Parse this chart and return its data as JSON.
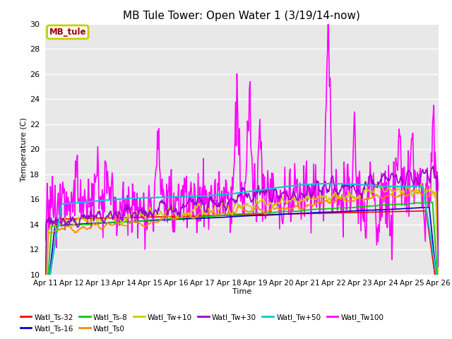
{
  "title": "MB Tule Tower: Open Water 1 (3/19/14-now)",
  "xlabel": "Time",
  "ylabel": "Temperature (C)",
  "xlim": [
    0,
    15
  ],
  "ylim": [
    10,
    30
  ],
  "yticks": [
    10,
    12,
    14,
    16,
    18,
    20,
    22,
    24,
    26,
    28,
    30
  ],
  "xtick_labels": [
    "Apr 11",
    "Apr 12",
    "Apr 13",
    "Apr 14",
    "Apr 15",
    "Apr 16",
    "Apr 17",
    "Apr 18",
    "Apr 19",
    "Apr 20",
    "Apr 21",
    "Apr 22",
    "Apr 23",
    "Apr 24",
    "Apr 25",
    "Apr 26"
  ],
  "bg_color": "#e8e8e8",
  "grid_color": "#ffffff",
  "series": {
    "Watl_Ts-32": {
      "color": "#ff0000",
      "lw": 1.2
    },
    "Watl_Ts-16": {
      "color": "#0000cc",
      "lw": 1.2
    },
    "Watl_Ts-8": {
      "color": "#00cc00",
      "lw": 1.2
    },
    "Watl_Ts0": {
      "color": "#ff8800",
      "lw": 1.2
    },
    "Watl_Tw+10": {
      "color": "#cccc00",
      "lw": 1.2
    },
    "Watl_Tw+30": {
      "color": "#9900cc",
      "lw": 1.2
    },
    "Watl_Tw+50": {
      "color": "#00cccc",
      "lw": 1.5
    },
    "Watl_Tw100": {
      "color": "#ff00ff",
      "lw": 1.2
    }
  },
  "legend_box_border_color": "#cccc00",
  "legend_box_text": "MB_tule",
  "legend_box_text_color": "#990000"
}
